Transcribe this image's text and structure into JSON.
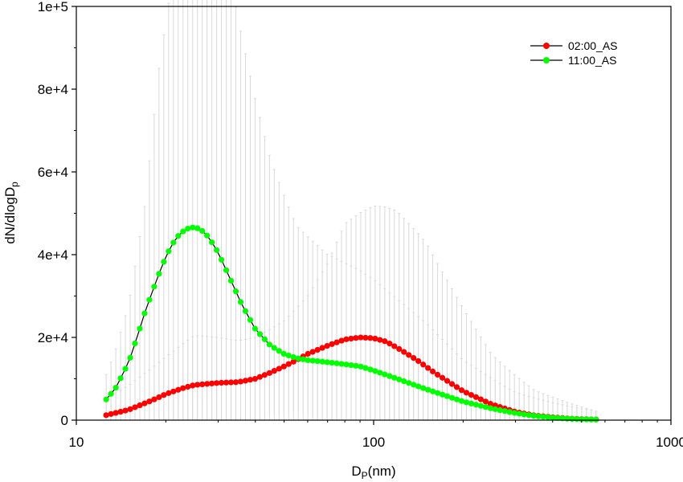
{
  "chart_data": {
    "type": "line",
    "x_scale": "log",
    "xlim": [
      10,
      1000
    ],
    "ylim": [
      0,
      100000
    ],
    "x_tick_values": [
      10,
      100,
      1000
    ],
    "x_tick_labels": [
      "10",
      "100",
      "1000"
    ],
    "y_tick_values": [
      0,
      20000,
      40000,
      60000,
      80000,
      100000
    ],
    "y_tick_labels": [
      "0",
      "2e+4",
      "4e+4",
      "6e+4",
      "8e+4",
      "1e+5"
    ],
    "xlabel": "D",
    "xlabel_sub": "P",
    "xlabel_suffix": "(nm)",
    "ylabel": "dN/dlogD",
    "ylabel_sub": "p",
    "grid": false,
    "legend_position": "top-right",
    "error_bar_color": "#d9d9d9",
    "line_color": "#000000",
    "x_range": [
      12.6,
      560
    ],
    "n_points": 103,
    "series": [
      {
        "name": "02:00_AS",
        "color": "#ff0000",
        "anchors_x": [
          12.6,
          15,
          18,
          20,
          23,
          25,
          30,
          35,
          40,
          45,
          50,
          55,
          60,
          70,
          80,
          90,
          100,
          110,
          120,
          140,
          160,
          200,
          250,
          300,
          350,
          400,
          450,
          500,
          560
        ],
        "anchors_y": [
          1200,
          2500,
          4800,
          6300,
          7800,
          8500,
          9000,
          9200,
          10000,
          11500,
          13000,
          14500,
          16000,
          18000,
          19500,
          20000,
          19800,
          19000,
          17500,
          14500,
          11500,
          7000,
          3800,
          2000,
          1100,
          700,
          400,
          250,
          150
        ],
        "error": [
          4000,
          9000,
          12000,
          11000,
          10000,
          10000,
          11000,
          14000,
          20000,
          28000,
          32000,
          33000,
          30000,
          20000,
          12000,
          6000,
          2000
        ],
        "error_x": [
          12.6,
          20,
          25,
          30,
          35,
          40,
          50,
          60,
          70,
          80,
          100,
          120,
          150,
          200,
          250,
          350,
          560
        ]
      },
      {
        "name": "11:00_AS",
        "color": "#00ff00",
        "anchors_x": [
          12.6,
          13.5,
          15,
          16,
          17,
          18,
          19,
          20,
          21,
          22,
          23,
          24,
          25,
          26,
          27,
          28,
          30,
          33,
          36,
          40,
          45,
          50,
          55,
          60,
          70,
          80,
          90,
          100,
          120,
          150,
          200,
          250,
          300,
          350,
          400,
          450,
          500,
          560
        ],
        "anchors_y": [
          5000,
          7500,
          14000,
          20000,
          26000,
          31000,
          35500,
          39500,
          42500,
          44500,
          45800,
          46500,
          46600,
          46200,
          45300,
          44000,
          40500,
          34000,
          28000,
          22000,
          18000,
          16000,
          15000,
          14500,
          14000,
          13500,
          13000,
          12000,
          10000,
          7500,
          4500,
          2800,
          1700,
          1000,
          600,
          350,
          200,
          150
        ],
        "error": [
          6000,
          14000,
          26000,
          50000,
          70000,
          80000,
          80000,
          75000,
          60000,
          45000,
          32000,
          26000,
          22000,
          16000,
          10000,
          5000,
          2000
        ],
        "error_x": [
          12.6,
          15,
          17,
          19,
          22,
          25,
          28,
          32,
          38,
          45,
          55,
          70,
          100,
          150,
          200,
          300,
          560
        ]
      }
    ]
  }
}
